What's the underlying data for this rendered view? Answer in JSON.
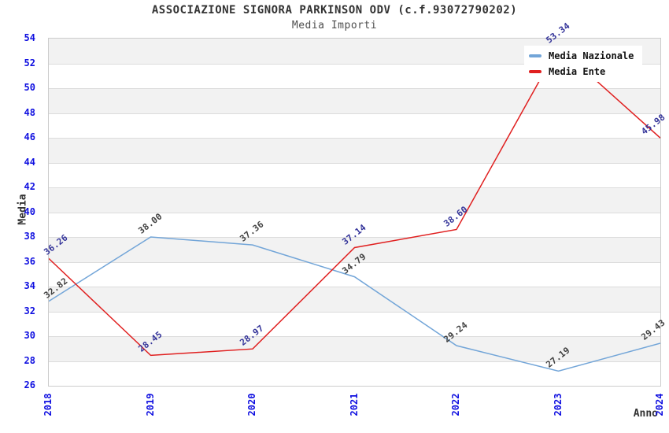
{
  "header": {
    "title": "ASSOCIAZIONE SIGNORA PARKINSON ODV (c.f.93072790202)",
    "subtitle": "Media Importi"
  },
  "chart_data": {
    "type": "line",
    "title": "ASSOCIAZIONE SIGNORA PARKINSON ODV (c.f.93072790202)",
    "subtitle": "Media Importi",
    "xlabel": "Anno",
    "ylabel": "Media",
    "x_categories": [
      "2018",
      "2019",
      "2020",
      "2021",
      "2022",
      "2023",
      "2024"
    ],
    "ylim": [
      26,
      54
    ],
    "ytick_step": 2,
    "yticks": [
      26,
      28,
      30,
      32,
      34,
      36,
      38,
      40,
      42,
      44,
      46,
      48,
      50,
      52,
      54
    ],
    "grid": "horizontal-alternating-bands",
    "legend_position": "top-right",
    "series": [
      {
        "name": "Media Nazionale",
        "color": "#72a5d8",
        "label_color": "#404040",
        "values": [
          32.82,
          38.0,
          37.36,
          34.79,
          29.24,
          27.19,
          29.43
        ],
        "value_labels": [
          "32.82",
          "38.00",
          "37.36",
          "34.79",
          "29.24",
          "27.19",
          "29.43"
        ]
      },
      {
        "name": "Media Ente",
        "color": "#e01f1f",
        "label_color": "#333399",
        "values": [
          36.26,
          28.45,
          28.97,
          37.14,
          38.6,
          53.34,
          45.98
        ],
        "value_labels": [
          "36.26",
          "28.45",
          "28.97",
          "37.14",
          "38.60",
          "53.34",
          "45.98"
        ]
      }
    ]
  },
  "colors": {
    "axis_tick_blue": "#0f0fe0",
    "band_gray": "#f2f2f2",
    "gridline": "#dcdcdc",
    "plot_border": "#cccccc",
    "title_text": "#333333"
  }
}
